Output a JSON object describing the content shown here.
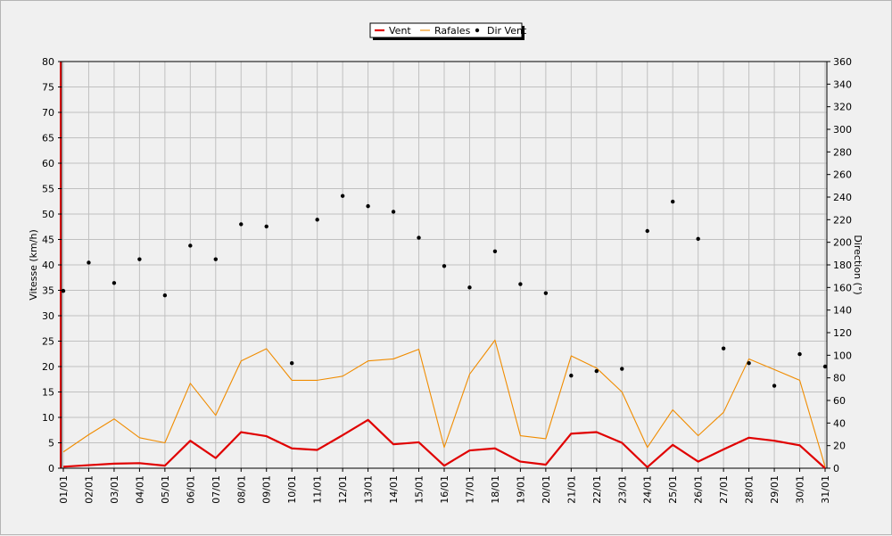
{
  "chart_data": {
    "type": "line",
    "title": "",
    "ylabel": "Vitesse (km/h)",
    "y2label": "Direction (°)",
    "xlabel": "",
    "ylim": [
      0,
      80
    ],
    "y2lim": [
      0,
      360
    ],
    "yticks": [
      "0",
      "5",
      "10",
      "15",
      "20",
      "25",
      "30",
      "35",
      "40",
      "45",
      "50",
      "55",
      "60",
      "65",
      "70",
      "75",
      "80"
    ],
    "y2ticks": [
      "0",
      "20",
      "40",
      "60",
      "80",
      "100",
      "120",
      "140",
      "160",
      "180",
      "200",
      "220",
      "240",
      "260",
      "280",
      "300",
      "320",
      "340",
      "360"
    ],
    "categories": [
      "01/01",
      "02/01",
      "03/01",
      "04/01",
      "05/01",
      "06/01",
      "07/01",
      "08/01",
      "09/01",
      "10/01",
      "11/01",
      "12/01",
      "13/01",
      "14/01",
      "15/01",
      "16/01",
      "17/01",
      "18/01",
      "19/01",
      "20/01",
      "21/01",
      "22/01",
      "23/01",
      "24/01",
      "25/01",
      "26/01",
      "27/01",
      "28/01",
      "29/01",
      "30/01",
      "31/01"
    ],
    "grid": true,
    "legend_position": "top-center",
    "series": [
      {
        "name": "Vent",
        "kind": "line",
        "axis": "left",
        "color": "#e00000",
        "values": [
          0.3,
          0.6,
          0.9,
          1.0,
          0.5,
          5.4,
          2.0,
          7.1,
          6.3,
          3.9,
          3.6,
          6.5,
          9.5,
          4.7,
          5.1,
          0.5,
          3.5,
          3.9,
          1.3,
          0.7,
          6.8,
          7.1,
          5.0,
          0.2,
          4.6,
          1.3,
          3.7,
          6.0,
          5.4,
          4.5,
          0.0
        ]
      },
      {
        "name": "Rafales",
        "kind": "line",
        "axis": "left",
        "color": "#f08c00",
        "values": [
          3.2,
          6.6,
          9.7,
          6.0,
          5.0,
          16.7,
          10.4,
          21.1,
          23.5,
          17.3,
          17.3,
          18.1,
          21.1,
          21.5,
          23.4,
          4.1,
          18.5,
          25.2,
          6.4,
          5.8,
          22.1,
          19.7,
          15.0,
          4.1,
          11.5,
          6.4,
          11.0,
          21.5,
          19.4,
          17.3,
          0.3
        ]
      },
      {
        "name": "Dir Vent",
        "kind": "scatter",
        "axis": "right",
        "color": "#000000",
        "values": [
          157,
          182,
          164,
          185,
          153,
          197,
          185,
          216,
          214,
          93,
          220,
          241,
          232,
          227,
          204,
          179,
          160,
          192,
          163,
          155,
          82,
          86,
          88,
          210,
          236,
          203,
          106,
          93,
          73,
          101,
          90
        ]
      }
    ]
  }
}
